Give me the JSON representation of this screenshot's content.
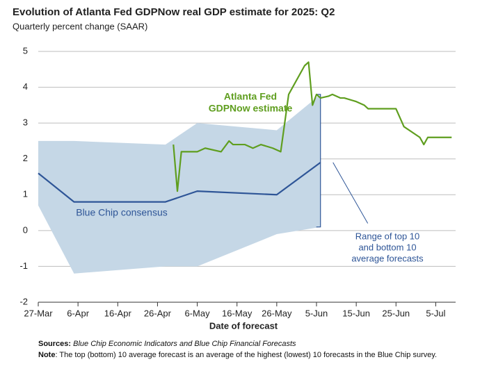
{
  "chart_data": {
    "type": "line",
    "title": "Evolution of Atlanta Fed GDPNow real GDP estimate for 2025: Q2",
    "subtitle": "Quarterly percent change (SAAR)",
    "x_label": "Date of forecast",
    "xlim": [
      86,
      191
    ],
    "xticks": [
      {
        "value": 86,
        "label": "27-Mar"
      },
      {
        "value": 96,
        "label": "6-Apr"
      },
      {
        "value": 106,
        "label": "16-Apr"
      },
      {
        "value": 116,
        "label": "26-Apr"
      },
      {
        "value": 126,
        "label": "6-May"
      },
      {
        "value": 136,
        "label": "16-May"
      },
      {
        "value": 146,
        "label": "26-May"
      },
      {
        "value": 156,
        "label": "5-Jun"
      },
      {
        "value": 166,
        "label": "15-Jun"
      },
      {
        "value": 176,
        "label": "25-Jun"
      },
      {
        "value": 186,
        "label": "5-Jul"
      }
    ],
    "ylim": [
      -2,
      5
    ],
    "yticks": [
      -2,
      -1,
      0,
      1,
      2,
      3,
      4,
      5
    ],
    "grid": true,
    "band": {
      "color": "#c5d7e6",
      "x": [
        86,
        95,
        118,
        126,
        146,
        157
      ],
      "upper": [
        2.5,
        2.5,
        2.4,
        3.0,
        2.8,
        3.8
      ],
      "lower": [
        0.7,
        -1.2,
        -1.0,
        -1.0,
        -0.1,
        0.1
      ],
      "label": [
        "Range of top 10",
        "and bottom 10",
        "average forecasts"
      ],
      "label_color": "#2e5597"
    },
    "series": [
      {
        "name": "Atlanta Fed GDPNow estimate",
        "label": [
          "Atlanta Fed",
          "GDPNow estimate"
        ],
        "color": "#5f9e1f",
        "x": [
          120,
          121,
          122,
          126,
          128,
          132,
          134,
          135,
          138,
          140,
          142,
          145,
          147,
          149,
          153,
          154,
          155,
          156,
          157,
          159,
          160,
          162,
          163,
          166,
          168,
          169,
          176,
          178,
          182,
          183,
          184,
          190
        ],
        "values": [
          2.4,
          1.1,
          2.2,
          2.2,
          2.3,
          2.2,
          2.5,
          2.4,
          2.4,
          2.3,
          2.4,
          2.3,
          2.2,
          3.8,
          4.6,
          4.7,
          3.5,
          3.8,
          3.7,
          3.75,
          3.8,
          3.7,
          3.7,
          3.6,
          3.5,
          3.4,
          3.4,
          2.9,
          2.6,
          2.4,
          2.6,
          2.6
        ]
      },
      {
        "name": "Blue Chip consensus",
        "label": [
          "Blue Chip consensus"
        ],
        "color": "#2e5597",
        "x": [
          86,
          95,
          118,
          126,
          146,
          157
        ],
        "values": [
          1.6,
          0.8,
          0.8,
          1.1,
          1.0,
          1.9
        ]
      }
    ],
    "sources_label": "Sources:",
    "sources": "Blue Chip Economic Indicators and Blue Chip Financial Forecasts",
    "note_label": "Note",
    "note": ": The top (bottom) 10 average forecast is an average of the highest (lowest) 10 forecasts in the Blue Chip survey."
  }
}
